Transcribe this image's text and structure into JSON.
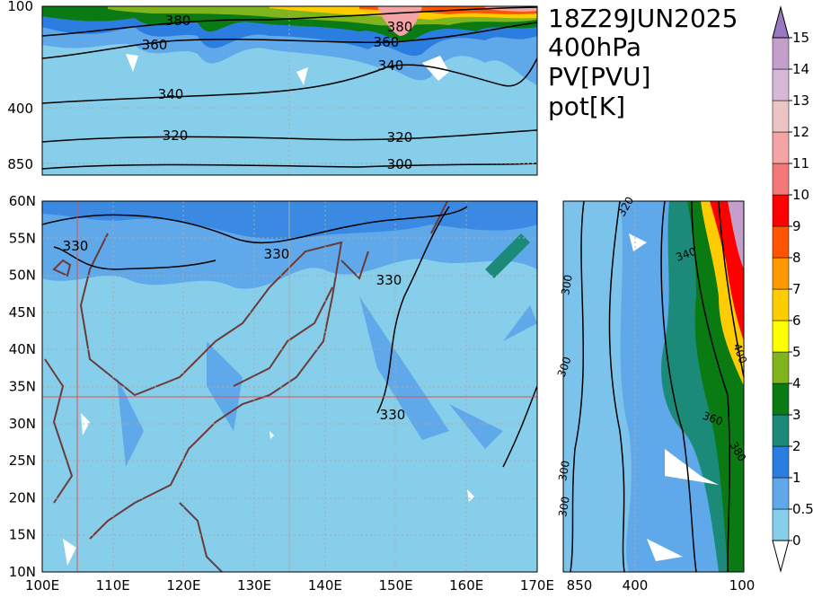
{
  "header": {
    "lines": [
      "18Z29JUN2025",
      "400hPa",
      "PV[PVU]",
      "pot[K]"
    ]
  },
  "top_panel": {
    "y_labels": [
      "100",
      "400",
      "850"
    ],
    "contour_labels": [
      "380",
      "380",
      "360",
      "360",
      "340",
      "340",
      "320",
      "320",
      "300"
    ]
  },
  "map": {
    "x_labels": [
      "100E",
      "110E",
      "120E",
      "130E",
      "140E",
      "150E",
      "160E",
      "170E"
    ],
    "y_labels": [
      "60N",
      "55N",
      "50N",
      "45N",
      "40N",
      "35N",
      "30N",
      "25N",
      "20N",
      "15N",
      "10N"
    ],
    "contour_labels": [
      "330",
      "330",
      "330",
      "330"
    ]
  },
  "side_panel": {
    "x_labels": [
      "850",
      "400",
      "100"
    ],
    "contour_labels": [
      "320",
      "340",
      "300",
      "300",
      "300",
      "300",
      "400",
      "360",
      "380"
    ]
  },
  "colorbar": {
    "levels": [
      0,
      0.5,
      1,
      2,
      3,
      4,
      5,
      6,
      7,
      8,
      9,
      10,
      11,
      12,
      13,
      14,
      15
    ],
    "colors": [
      "#87ceeb",
      "#5fa8ea",
      "#2b7de0",
      "#1c8a78",
      "#0a7a12",
      "#7fb41c",
      "#ffff00",
      "#ffcc00",
      "#ff9900",
      "#ff5500",
      "#ff0000",
      "#f47878",
      "#f4a4a4",
      "#ecc4c4",
      "#d8b8d8",
      "#c59fcb"
    ],
    "over_color": "#9a78c0",
    "under_color": "#ffffff"
  }
}
